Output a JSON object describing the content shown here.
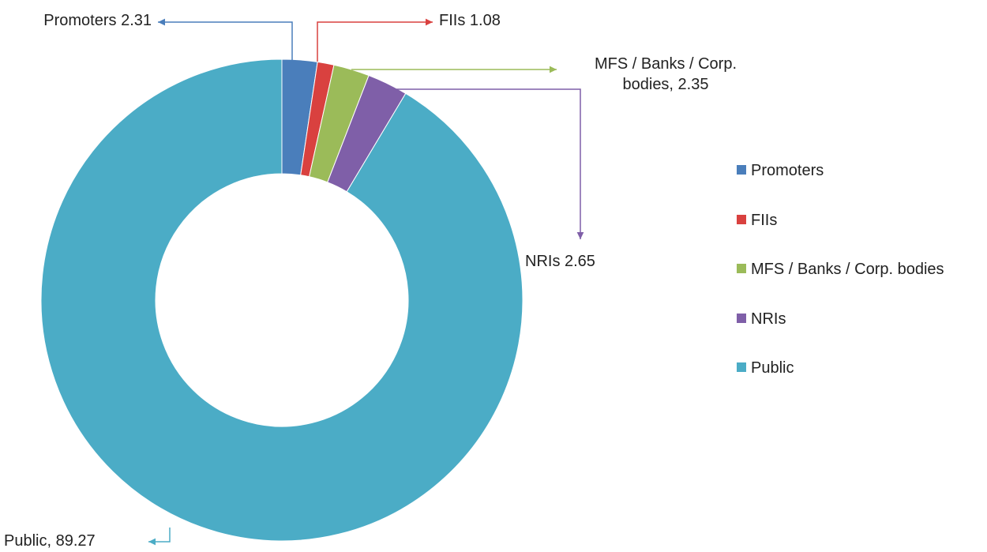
{
  "chart_data": {
    "type": "donut",
    "categories": [
      "Promoters",
      "FIIs",
      "MFS / Banks / Corp. bodies",
      "NRIs",
      "Public"
    ],
    "values": [
      2.31,
      1.08,
      2.35,
      2.65,
      89.27
    ],
    "value_labels": [
      "Promoters 2.31",
      "FIIs 1.08",
      "MFS / Banks / Corp. bodies, 2.35",
      "NRIs 2.65",
      "Public, 89.27"
    ],
    "colors": [
      "#4a7ebb",
      "#d9413f",
      "#9bbb59",
      "#7f5fa8",
      "#4bacc6"
    ],
    "legend": "right"
  }
}
